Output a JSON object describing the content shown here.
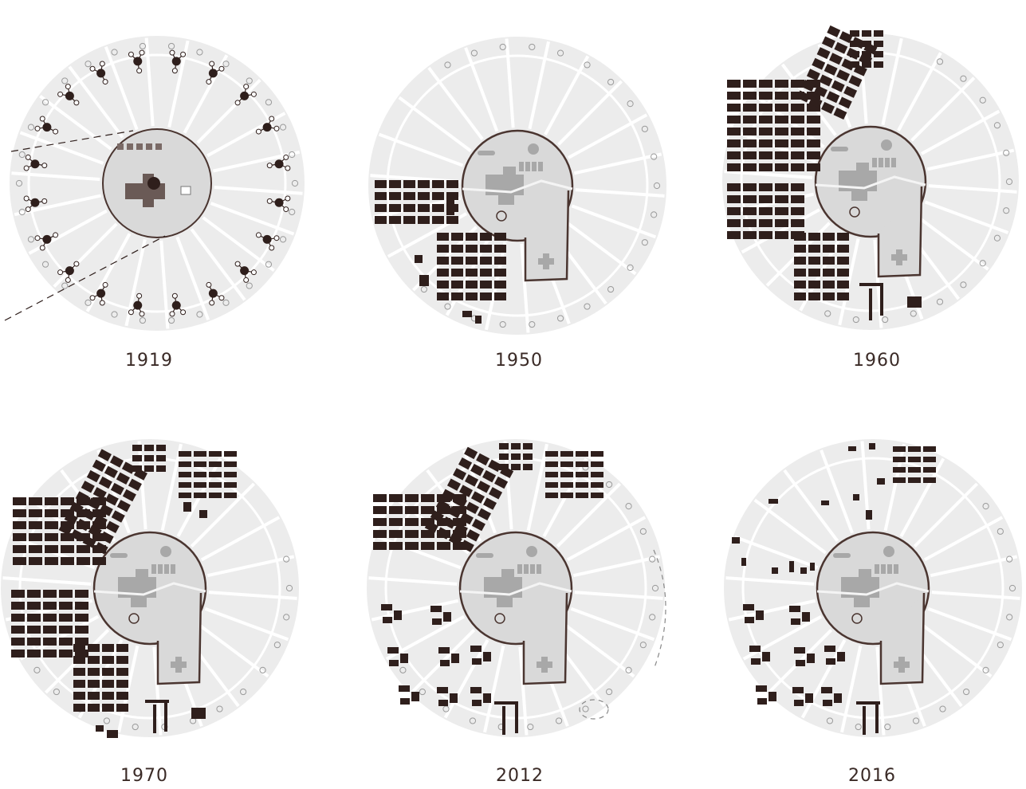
{
  "panels": [
    {
      "year": "1919",
      "style": "radial-houses"
    },
    {
      "year": "1950",
      "blocks": [
        "sw"
      ]
    },
    {
      "year": "1960",
      "blocks": [
        "w",
        "nw",
        "sw",
        "s"
      ]
    },
    {
      "year": "1970",
      "blocks": [
        "w",
        "nw",
        "n",
        "sw",
        "s"
      ]
    },
    {
      "year": "2012",
      "blocks": [
        "w-partial",
        "nw",
        "n",
        "scatter"
      ]
    },
    {
      "year": "2016",
      "blocks": [
        "scatter-sparse",
        "n-sparse"
      ]
    }
  ],
  "colors": {
    "background": "#ffffff",
    "disc": "#ececec",
    "spoke": "#ffffff",
    "center": "#d9d9d9",
    "outline": "#4a3530",
    "block": "#2f1f1c",
    "building": "#a8a8a8",
    "label": "#3a2a26"
  }
}
